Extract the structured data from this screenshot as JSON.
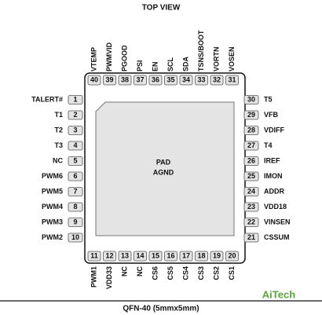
{
  "header": {
    "title": "TOP VIEW"
  },
  "pad": {
    "line1": "PAD",
    "line2": "AGND"
  },
  "pins": {
    "left": [
      {
        "number": "1",
        "label": "TALERT#"
      },
      {
        "number": "2",
        "label": "T1"
      },
      {
        "number": "3",
        "label": "T2"
      },
      {
        "number": "4",
        "label": "T3"
      },
      {
        "number": "5",
        "label": "NC"
      },
      {
        "number": "6",
        "label": "PWM6"
      },
      {
        "number": "7",
        "label": "PWM5"
      },
      {
        "number": "8",
        "label": "PWM4"
      },
      {
        "number": "9",
        "label": "PWM3"
      },
      {
        "number": "10",
        "label": "PWM2"
      }
    ],
    "bottom": [
      {
        "number": "11",
        "label": "PWM1"
      },
      {
        "number": "12",
        "label": "VDD33"
      },
      {
        "number": "13",
        "label": "NC"
      },
      {
        "number": "14",
        "label": "NC"
      },
      {
        "number": "15",
        "label": "CS6"
      },
      {
        "number": "16",
        "label": "CS5"
      },
      {
        "number": "17",
        "label": "CS4"
      },
      {
        "number": "18",
        "label": "CS3"
      },
      {
        "number": "19",
        "label": "CS2"
      },
      {
        "number": "20",
        "label": "CS1"
      }
    ],
    "right": [
      {
        "number": "21",
        "label": "CSSUM"
      },
      {
        "number": "22",
        "label": "VINSEN"
      },
      {
        "number": "23",
        "label": "VDD18"
      },
      {
        "number": "24",
        "label": "ADDR"
      },
      {
        "number": "25",
        "label": "IMON"
      },
      {
        "number": "26",
        "label": "IREF"
      },
      {
        "number": "27",
        "label": "T4"
      },
      {
        "number": "28",
        "label": "VDIFF"
      },
      {
        "number": "29",
        "label": "VFB"
      },
      {
        "number": "30",
        "label": "T5"
      }
    ],
    "top": [
      {
        "number": "31",
        "label": "VOSEN"
      },
      {
        "number": "32",
        "label": "VORTN"
      },
      {
        "number": "33",
        "label": "TSNS/BOOT"
      },
      {
        "number": "34",
        "label": "SDA"
      },
      {
        "number": "35",
        "label": "SCL"
      },
      {
        "number": "36",
        "label": "EN"
      },
      {
        "number": "37",
        "label": "PSI"
      },
      {
        "number": "38",
        "label": "PGOOD"
      },
      {
        "number": "39",
        "label": "PWMVID"
      },
      {
        "number": "40",
        "label": "VTEMP"
      }
    ]
  },
  "footer": {
    "caption": "QFN-40 (5mmx5mm)",
    "logo": "AiTech"
  }
}
